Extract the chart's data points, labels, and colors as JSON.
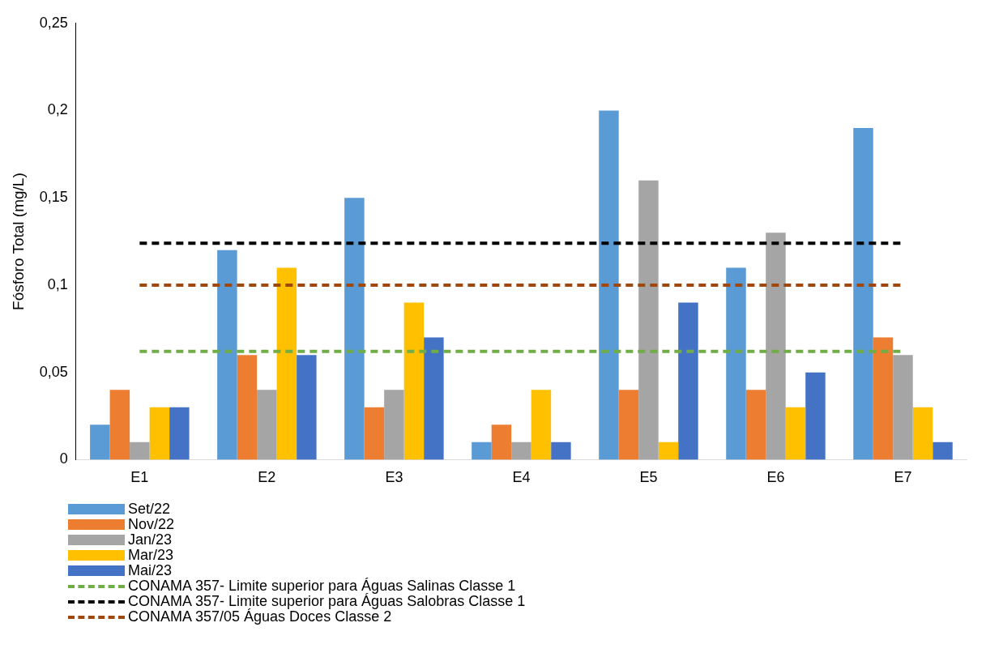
{
  "chart_data": {
    "type": "bar",
    "ylabel": "Fósforo Total (mg/L)",
    "categories": [
      "E1",
      "E2",
      "E3",
      "E4",
      "E5",
      "E6",
      "E7"
    ],
    "series": [
      {
        "name": "Set/22",
        "color": "#5b9bd5",
        "values": [
          0.02,
          0.12,
          0.15,
          0.01,
          0.2,
          0.11,
          0.19
        ]
      },
      {
        "name": "Nov/22",
        "color": "#ed7d31",
        "values": [
          0.04,
          0.06,
          0.03,
          0.02,
          0.04,
          0.04,
          0.07
        ]
      },
      {
        "name": "Jan/23",
        "color": "#a5a5a5",
        "values": [
          0.01,
          0.04,
          0.04,
          0.01,
          0.16,
          0.13,
          0.06
        ]
      },
      {
        "name": "Mar/23",
        "color": "#ffc000",
        "values": [
          0.03,
          0.11,
          0.09,
          0.04,
          0.01,
          0.03,
          0.03
        ]
      },
      {
        "name": "Mai/23",
        "color": "#4472c4",
        "values": [
          0.03,
          0.06,
          0.07,
          0.01,
          0.09,
          0.05,
          0.01
        ]
      }
    ],
    "ref_lines": [
      {
        "axis": "y",
        "value": 0.062,
        "label": "CONAMA 357- Limite superior para Águas Salinas Classe 1",
        "color": "#70ad47",
        "line_style": "dashed"
      },
      {
        "axis": "y",
        "value": 0.124,
        "label": "CONAMA 357- Limite superior para Águas Salobras Classe 1",
        "color": "#000000",
        "line_style": "dashed"
      },
      {
        "axis": "y",
        "value": 0.1,
        "label": "CONAMA 357/05 Águas Doces Classe 2",
        "color": "#9e480e",
        "line_style": "dashed"
      }
    ],
    "ylim": [
      0,
      0.25
    ],
    "yticks": [
      0,
      {
        "value": 0.05,
        "label": "0,05"
      },
      {
        "value": 0.1,
        "label": "0,1"
      },
      {
        "value": 0.15,
        "label": "0,15"
      },
      {
        "value": 0.2,
        "label": "0,2"
      },
      {
        "value": 0.25,
        "label": "0,25"
      }
    ],
    "grid": false,
    "legend": "bottom left"
  }
}
